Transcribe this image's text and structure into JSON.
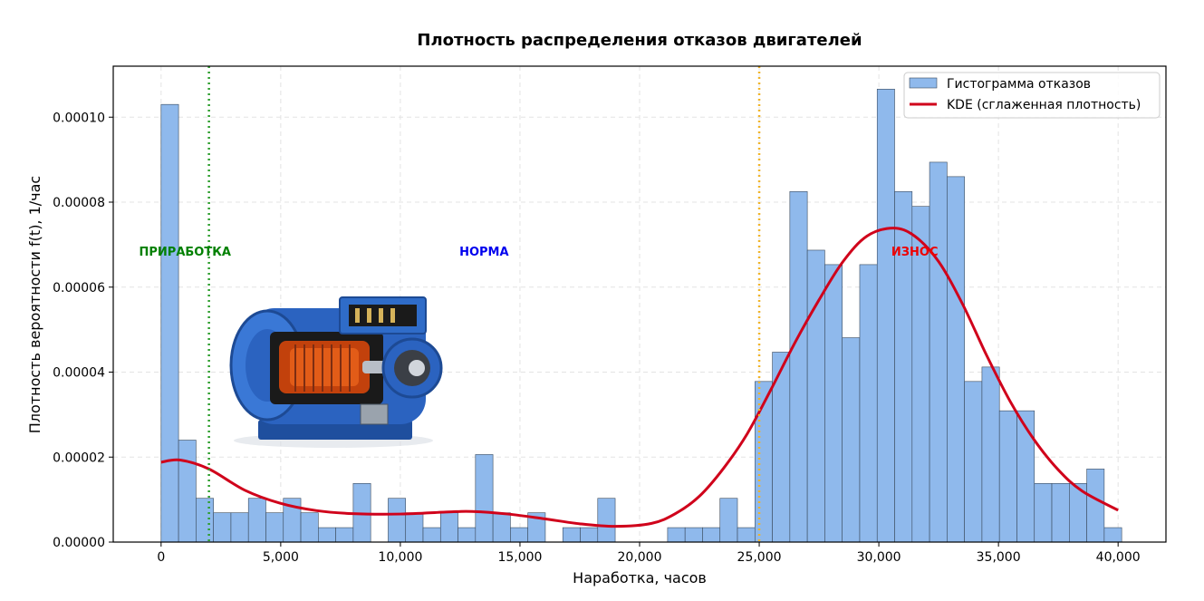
{
  "chart_data": {
    "type": "bar",
    "title": "Плотность распределения отказов двигателей",
    "xlabel": "Наработка, часов",
    "ylabel": "Плотность вероятности f(t), 1/час",
    "xlim": [
      -2000,
      42000
    ],
    "ylim": [
      0,
      0.000112
    ],
    "x_ticks": [
      0,
      5000,
      10000,
      15000,
      20000,
      25000,
      30000,
      35000,
      40000
    ],
    "x_tick_labels": [
      "0",
      "5,000",
      "10,000",
      "15,000",
      "20,000",
      "25,000",
      "30,000",
      "35,000",
      "40,000"
    ],
    "y_ticks": [
      0,
      2e-05,
      4e-05,
      6e-05,
      8e-05,
      0.0001
    ],
    "y_tick_labels": [
      "0.00000",
      "0.00002",
      "0.00004",
      "0.00006",
      "0.00008",
      "0.00010"
    ],
    "grid": true,
    "legend_position": "top-right",
    "histogram": {
      "name": "Гистограмма отказов",
      "color": "#8fb9ec",
      "edge_color": "#3a4a5c",
      "bin_start": 0,
      "bin_width": 730,
      "values": [
        0.000103,
        2.4e-05,
        1.03e-05,
        6.9e-06,
        6.9e-06,
        1.03e-05,
        6.9e-06,
        1.03e-05,
        6.9e-06,
        3.4e-06,
        3.4e-06,
        1.38e-05,
        0,
        1.03e-05,
        6.9e-06,
        3.4e-06,
        6.9e-06,
        3.4e-06,
        2.06e-05,
        6.9e-06,
        3.4e-06,
        6.9e-06,
        0,
        3.4e-06,
        3.4e-06,
        1.03e-05,
        0,
        0,
        0,
        3.4e-06,
        3.4e-06,
        3.4e-06,
        1.03e-05,
        3.4e-06,
        3.78e-05,
        4.47e-05,
        8.25e-05,
        6.87e-05,
        6.53e-05,
        4.81e-05,
        6.53e-05,
        0.0001066,
        8.25e-05,
        7.9e-05,
        8.94e-05,
        8.6e-05,
        3.78e-05,
        4.12e-05,
        3.09e-05,
        3.09e-05,
        1.38e-05,
        1.38e-05,
        1.38e-05,
        1.72e-05,
        3.4e-06
      ]
    },
    "kde": {
      "name": "KDE (сглаженная плотность)",
      "color": "#d0021b",
      "x": [
        0,
        800,
        2000,
        3500,
        5000,
        6500,
        8000,
        10000,
        12000,
        13000,
        14500,
        16000,
        17500,
        19000,
        20500,
        21500,
        22500,
        23500,
        24500,
        25500,
        26500,
        27500,
        28500,
        29500,
        30600,
        31500,
        32500,
        33500,
        34500,
        35500,
        36500,
        37500,
        38500,
        40000
      ],
      "y": [
        1.88e-05,
        1.93e-05,
        1.72e-05,
        1.22e-05,
        9.1e-06,
        7.4e-06,
        6.7e-06,
        6.6e-06,
        7.1e-06,
        7.2e-06,
        6.6e-06,
        5.5e-06,
        4.3e-06,
        3.7e-06,
        4.4e-06,
        6.7e-06,
        1.08e-05,
        1.73e-05,
        2.55e-05,
        3.6e-05,
        4.7e-05,
        5.7e-05,
        6.6e-05,
        7.2e-05,
        7.39e-05,
        7.2e-05,
        6.6e-05,
        5.6e-05,
        4.4e-05,
        3.3e-05,
        2.4e-05,
        1.7e-05,
        1.2e-05,
        7.5e-06
      ]
    },
    "vlines": [
      {
        "x": 2000,
        "color": "#2e9e2e",
        "style": "dotted"
      },
      {
        "x": 25000,
        "color": "#f0b429",
        "style": "dotted"
      }
    ],
    "annotations": [
      {
        "text": "ПРИРАБОТКА",
        "x": 1000,
        "y": 6.74e-05,
        "color": "#008000"
      },
      {
        "text": "НОРМА",
        "x": 13500,
        "y": 6.74e-05,
        "color": "#0000ee"
      },
      {
        "text": "ИЗНОС",
        "x": 31500,
        "y": 6.74e-05,
        "color": "#ee0000"
      }
    ]
  },
  "image": {
    "icon": "electric-motor-cutaway-icon"
  }
}
